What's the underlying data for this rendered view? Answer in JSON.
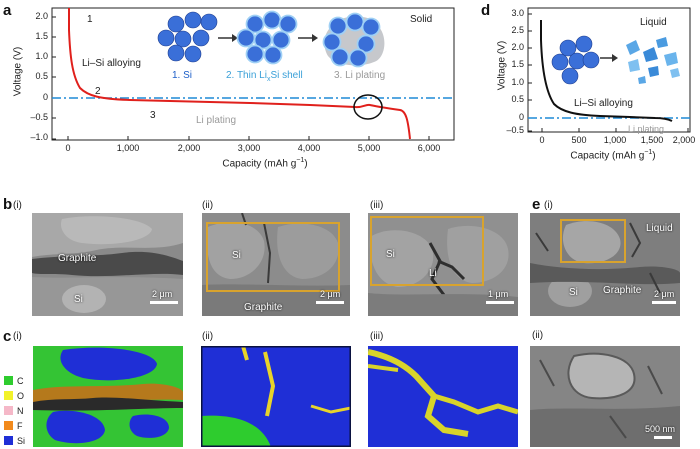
{
  "panel_a": {
    "label": "a",
    "ylabel": "Voltage (V)",
    "xlabel": "Capacity (mAh g",
    "xlabel_sup": "−1",
    "xlabel_end": ")",
    "yticks": [
      "2.0",
      "1.5",
      "1.0",
      "0.5",
      "0",
      "–0.5",
      "–1.0"
    ],
    "xticks": [
      "0",
      "1,000",
      "2,000",
      "3,000",
      "4,000",
      "5,000",
      "6,000"
    ],
    "state": "Solid",
    "annot_1": "1",
    "annot_2": "2",
    "annot_3": "3",
    "text_alloying": "Li–Si alloying",
    "text_plating": "Li plating",
    "step1": "1. Si",
    "step2_pre": "2. Thin Li",
    "step2_sub": "x",
    "step2_post": "Si shell",
    "step3": "3. Li plating"
  },
  "panel_d": {
    "label": "d",
    "ylabel": "Voltage (V)",
    "xlabel": "Capacity (mAh g",
    "xlabel_sup": "−1",
    "xlabel_end": ")",
    "yticks": [
      "3.0",
      "2.5",
      "2.0",
      "1.5",
      "1.0",
      "0.5",
      "0",
      "–0.5"
    ],
    "xticks": [
      "0",
      "500",
      "1,000",
      "1,500",
      "2,000"
    ],
    "state": "Liquid",
    "text_alloying": "Li–Si alloying",
    "text_plating": "Li plating"
  },
  "panel_b": {
    "label": "b",
    "sub_i": "(i)",
    "sub_ii": "(ii)",
    "sub_iii": "(iii)",
    "i_graphite": "Graphite",
    "i_si": "Si",
    "i_scale": "2 μm",
    "ii_si": "Si",
    "ii_graphite": "Graphite",
    "ii_scale": "2 μm",
    "iii_si": "Si",
    "iii_li": "Li",
    "iii_scale": "1 μm"
  },
  "panel_c": {
    "label": "c",
    "sub_i": "(i)",
    "sub_ii": "(ii)",
    "sub_iii": "(iii)",
    "legend": [
      {
        "name": "C",
        "color": "#2ecc2e"
      },
      {
        "name": "O",
        "color": "#f2f22a"
      },
      {
        "name": "N",
        "color": "#f5b8c8"
      },
      {
        "name": "F",
        "color": "#f28a1c"
      },
      {
        "name": "Si",
        "color": "#1f2fd6"
      }
    ]
  },
  "panel_e": {
    "label": "e",
    "sub_i": "(i)",
    "sub_ii": "(ii)",
    "i_liquid": "Liquid",
    "i_si": "Si",
    "i_graphite": "Graphite",
    "i_scale": "2 μm",
    "ii_scale": "500 nm"
  },
  "colors": {
    "curve_a": "#e0201c",
    "curve_d": "#111111",
    "dash": "#1e8ad6",
    "si_blue": "#3a6fd8",
    "gold": "#d8a32e"
  }
}
